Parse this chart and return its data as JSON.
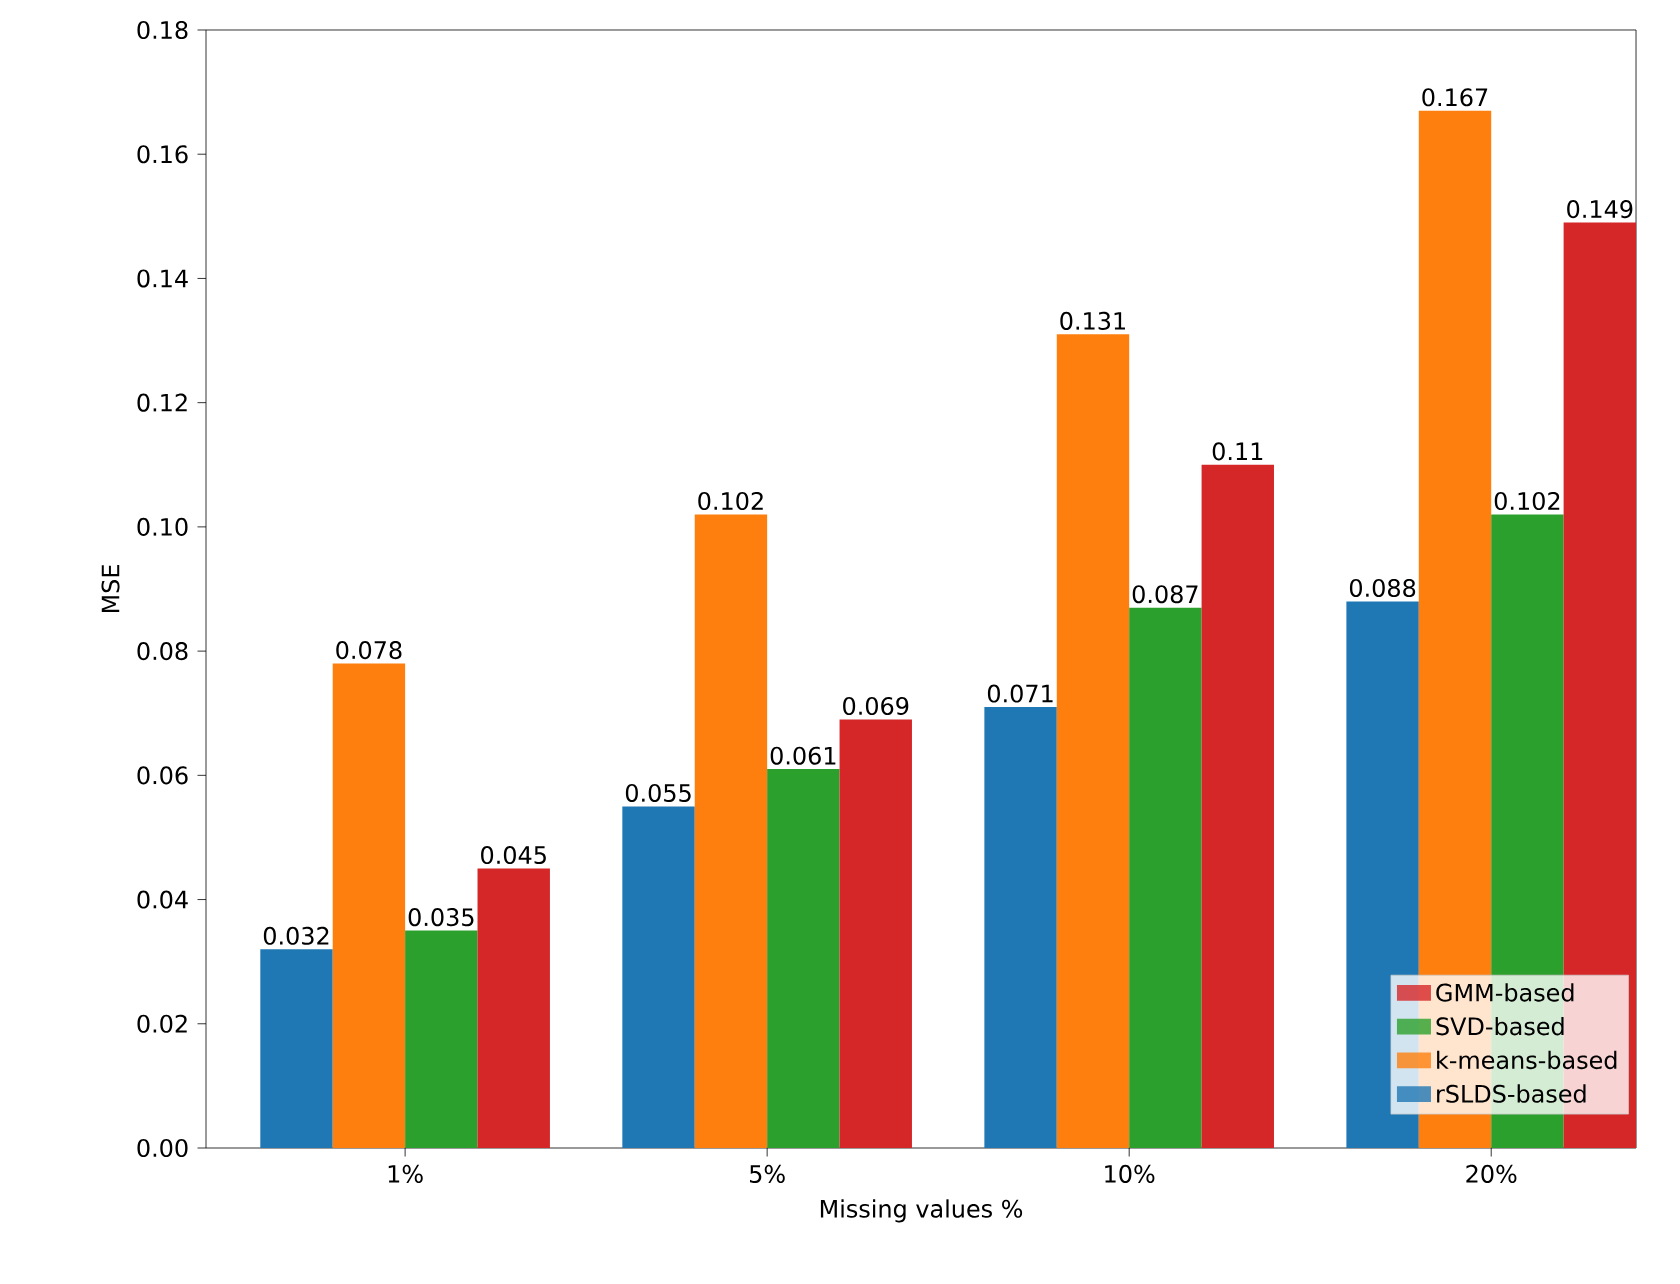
{
  "chart_data": {
    "type": "bar",
    "xlabel": "Missing values %",
    "ylabel": "MSE",
    "categories": [
      "1%",
      "5%",
      "10%",
      "20%"
    ],
    "series": [
      {
        "name": "rSLDS-based",
        "color": "#1f77b4",
        "values": [
          0.032,
          0.055,
          0.071,
          0.088
        ]
      },
      {
        "name": "k-means-based",
        "color": "#ff7f0e",
        "values": [
          0.078,
          0.102,
          0.131,
          0.167
        ]
      },
      {
        "name": "SVD-based",
        "color": "#2ca02c",
        "values": [
          0.035,
          0.061,
          0.087,
          0.102
        ]
      },
      {
        "name": "GMM-based",
        "color": "#d62728",
        "values": [
          0.045,
          0.069,
          0.11,
          0.149
        ]
      }
    ],
    "ylim": [
      0,
      0.18
    ],
    "yticks": [
      {
        "value": 0,
        "label": "0.00"
      },
      {
        "value": 0.02,
        "label": "0.02"
      },
      {
        "value": 0.04,
        "label": "0.04"
      },
      {
        "value": 0.06,
        "label": "0.06"
      },
      {
        "value": 0.08,
        "label": "0.08"
      },
      {
        "value": 0.1,
        "label": "0.10"
      },
      {
        "value": 0.12,
        "label": "0.12"
      },
      {
        "value": 0.14,
        "label": "0.14"
      },
      {
        "value": 0.16,
        "label": "0.16"
      },
      {
        "value": 0.18,
        "label": "0.18"
      }
    ],
    "data_labels": true,
    "legend": "bottom right",
    "grid": false
  }
}
